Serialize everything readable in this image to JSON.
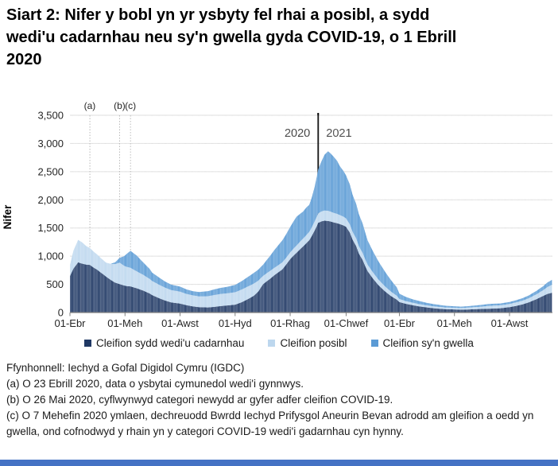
{
  "page": {
    "background": "#ffffff",
    "bottom_bar_color": "#4472C4"
  },
  "title_lines": [
    "Siart 2: Nifer y bobl yn yr ysbyty fel rhai a posibl, a sydd",
    "wedi'u cadarnhau neu sy'n gwella gyda COVID-19, o 1 Ebrill",
    "2020"
  ],
  "footnotes": [
    "Ffynhonnell: Iechyd a Gofal Digidol Cymru (IGDC)",
    "(a) O 23 Ebrill 2020, data o ysbytai cymunedol wedi'i gynnwys.",
    "(b) O 26 Mai 2020, cyflwynwyd categori newydd ar gyfer adfer cleifion COVID-19.",
    "(c) O 7 Mehefin 2020 ymlaen, dechreuodd Bwrdd Iechyd Prifysgol Aneurin Bevan adrodd am gleifion a oedd yn gwella, ond cofnodwyd y rhain yn y categori COVID-19 wedi'i gadarnhau cyn hynny."
  ],
  "chart_data": {
    "type": "area",
    "stacked": true,
    "ylabel": "Nifer",
    "ylim": [
      0,
      3500
    ],
    "grid": true,
    "x_unit": "days since 01-Ebr-2020",
    "y_tick_labels": [
      "0",
      "500",
      "1,000",
      "1,500",
      "2,000",
      "2,500",
      "3,000",
      "3,500"
    ],
    "x_tick_labels": [
      "01-Ebr",
      "01-Meh",
      "01-Awst",
      "01-Hyd",
      "01-Rhag",
      "01-Chwef",
      "01-Ebr",
      "01-Meh",
      "01-Awst"
    ],
    "x_tick_days": [
      0,
      61,
      122,
      183,
      244,
      306,
      365,
      426,
      487
    ],
    "annotations": [
      {
        "label": "(a)",
        "day": 22
      },
      {
        "label": "(b)",
        "day": 55
      },
      {
        "label": "(c)",
        "day": 67
      }
    ],
    "year_divider": {
      "day": 275,
      "left_label": "2020",
      "right_label": "2021"
    },
    "series": [
      {
        "name": "Cleifion sydd wedi'u cadarnhau",
        "color": "#1F3864"
      },
      {
        "name": "Cleifion posibl",
        "color": "#BDD7EE"
      },
      {
        "name": "Cleifion sy'n gwella",
        "color": "#5B9BD5"
      }
    ],
    "points_format": [
      "day",
      "cadarnhau",
      "posibl",
      "gwella"
    ],
    "points": [
      [
        0,
        650,
        200,
        0
      ],
      [
        4,
        780,
        320,
        0
      ],
      [
        9,
        890,
        400,
        0
      ],
      [
        13,
        870,
        380,
        0
      ],
      [
        18,
        850,
        330,
        0
      ],
      [
        22,
        845,
        300,
        0
      ],
      [
        26,
        800,
        285,
        0
      ],
      [
        30,
        760,
        270,
        0
      ],
      [
        35,
        700,
        255,
        0
      ],
      [
        40,
        640,
        245,
        0
      ],
      [
        45,
        580,
        285,
        0
      ],
      [
        50,
        530,
        330,
        30
      ],
      [
        55,
        505,
        380,
        85
      ],
      [
        60,
        480,
        350,
        170
      ],
      [
        63,
        470,
        340,
        230
      ],
      [
        67,
        465,
        330,
        300
      ],
      [
        74,
        430,
        300,
        280
      ],
      [
        81,
        390,
        280,
        220
      ],
      [
        88,
        340,
        260,
        180
      ],
      [
        91,
        310,
        250,
        150
      ],
      [
        98,
        260,
        240,
        130
      ],
      [
        105,
        215,
        230,
        110
      ],
      [
        112,
        180,
        220,
        95
      ],
      [
        122,
        160,
        210,
        90
      ],
      [
        129,
        130,
        200,
        80
      ],
      [
        136,
        110,
        195,
        75
      ],
      [
        143,
        95,
        190,
        78
      ],
      [
        153,
        90,
        200,
        90
      ],
      [
        160,
        100,
        210,
        100
      ],
      [
        167,
        115,
        215,
        108
      ],
      [
        174,
        125,
        215,
        115
      ],
      [
        183,
        140,
        220,
        130
      ],
      [
        190,
        180,
        225,
        150
      ],
      [
        197,
        235,
        225,
        170
      ],
      [
        204,
        300,
        215,
        190
      ],
      [
        209,
        380,
        190,
        195
      ],
      [
        214,
        505,
        145,
        200
      ],
      [
        221,
        590,
        140,
        260
      ],
      [
        228,
        680,
        130,
        330
      ],
      [
        235,
        760,
        125,
        390
      ],
      [
        240,
        860,
        120,
        420
      ],
      [
        244,
        950,
        120,
        450
      ],
      [
        251,
        1060,
        130,
        510
      ],
      [
        258,
        1170,
        140,
        480
      ],
      [
        262,
        1230,
        145,
        490
      ],
      [
        265,
        1280,
        150,
        480
      ],
      [
        268,
        1360,
        155,
        530
      ],
      [
        271,
        1450,
        160,
        610
      ],
      [
        275,
        1590,
        170,
        780
      ],
      [
        279,
        1620,
        175,
        900
      ],
      [
        282,
        1630,
        180,
        990
      ],
      [
        286,
        1625,
        180,
        1055
      ],
      [
        289,
        1615,
        175,
        1030
      ],
      [
        292,
        1600,
        170,
        1000
      ],
      [
        296,
        1585,
        165,
        940
      ],
      [
        299,
        1570,
        160,
        870
      ],
      [
        303,
        1545,
        155,
        810
      ],
      [
        306,
        1520,
        150,
        760
      ],
      [
        310,
        1420,
        145,
        710
      ],
      [
        313,
        1300,
        140,
        660
      ],
      [
        317,
        1180,
        135,
        615
      ],
      [
        320,
        1050,
        130,
        570
      ],
      [
        324,
        940,
        125,
        525
      ],
      [
        327,
        830,
        120,
        480
      ],
      [
        330,
        730,
        115,
        430
      ],
      [
        334,
        640,
        110,
        390
      ],
      [
        341,
        500,
        100,
        330
      ],
      [
        348,
        390,
        90,
        270
      ],
      [
        355,
        300,
        80,
        210
      ],
      [
        362,
        230,
        68,
        150
      ],
      [
        365,
        185,
        55,
        95
      ],
      [
        372,
        155,
        48,
        75
      ],
      [
        379,
        132,
        44,
        62
      ],
      [
        386,
        112,
        40,
        55
      ],
      [
        395,
        92,
        36,
        46
      ],
      [
        402,
        78,
        34,
        40
      ],
      [
        409,
        68,
        32,
        35
      ],
      [
        416,
        60,
        30,
        30
      ],
      [
        426,
        55,
        30,
        27
      ],
      [
        433,
        50,
        30,
        25
      ],
      [
        440,
        53,
        33,
        26
      ],
      [
        447,
        58,
        36,
        28
      ],
      [
        456,
        63,
        42,
        30
      ],
      [
        463,
        67,
        50,
        32
      ],
      [
        470,
        71,
        53,
        33
      ],
      [
        477,
        76,
        52,
        33
      ],
      [
        487,
        96,
        56,
        36
      ],
      [
        494,
        116,
        62,
        39
      ],
      [
        501,
        142,
        67,
        43
      ],
      [
        508,
        178,
        72,
        49
      ],
      [
        517,
        238,
        87,
        61
      ],
      [
        524,
        292,
        102,
        71
      ],
      [
        529,
        330,
        122,
        80
      ],
      [
        534,
        352,
        142,
        86
      ]
    ]
  }
}
